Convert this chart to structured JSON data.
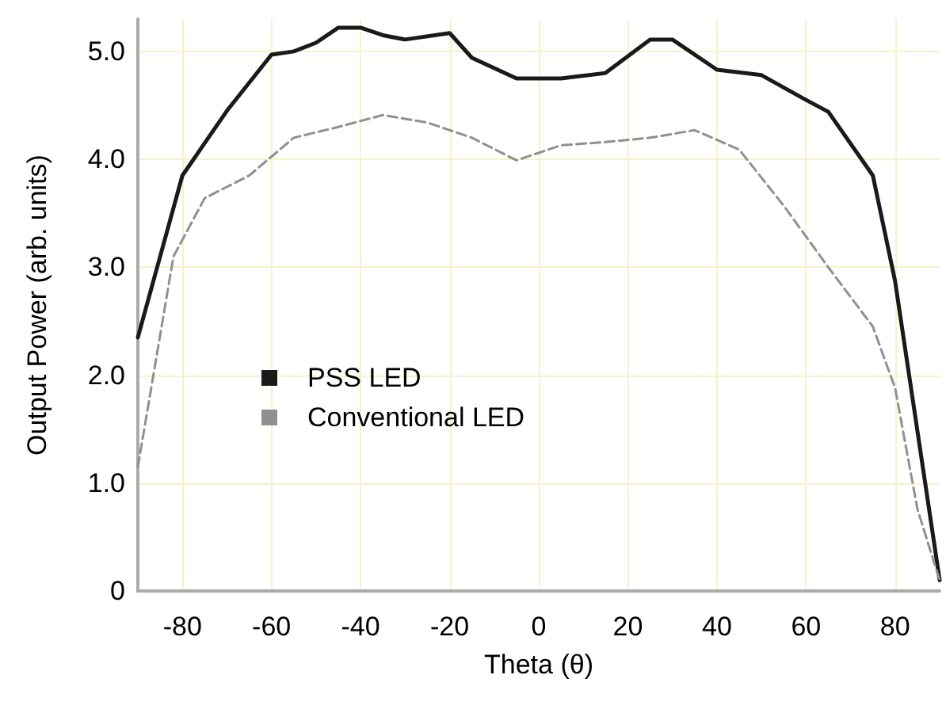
{
  "chart_data": {
    "type": "line",
    "xlabel": "Theta (θ)",
    "ylabel": "Output Power (arb. units)",
    "xlim": [
      -90,
      90
    ],
    "xticks": [
      -80,
      -60,
      -40,
      -20,
      0,
      20,
      40,
      60,
      80
    ],
    "ylim": [
      0,
      5.3
    ],
    "yticks": [
      0,
      {
        "value": 1,
        "label": "1.0"
      },
      {
        "value": 2,
        "label": "2.0"
      },
      {
        "value": 3,
        "label": "3.0"
      },
      {
        "value": 4,
        "label": "4.0"
      },
      {
        "value": 5,
        "label": "5.0"
      }
    ],
    "grid": true,
    "legend": "left",
    "marker": "none",
    "series": [
      {
        "name": "PSS LED",
        "color": "#1a1a1a",
        "line_style": "solid",
        "x": [
          -90,
          -80,
          -70,
          -60,
          -55,
          -50,
          -45,
          -40,
          -35,
          -30,
          -20,
          -15,
          -5,
          5,
          15,
          25,
          30,
          40,
          50,
          60,
          65,
          75,
          80,
          90
        ],
        "values": [
          2.35,
          3.85,
          4.45,
          4.97,
          5.0,
          5.08,
          5.22,
          5.22,
          5.15,
          5.11,
          5.17,
          4.94,
          4.75,
          4.75,
          4.8,
          5.11,
          5.11,
          4.83,
          4.78,
          4.55,
          4.44,
          3.85,
          2.87,
          0.1
        ]
      },
      {
        "name": "Conventional LED",
        "color": "#909090",
        "line_style": "dashed",
        "x": [
          -90,
          -82,
          -75,
          -65,
          -55,
          -45,
          -35,
          -25,
          -15,
          -5,
          5,
          15,
          25,
          35,
          45,
          55,
          65,
          75,
          80,
          85,
          90
        ],
        "values": [
          1.15,
          3.1,
          3.64,
          3.85,
          4.2,
          4.3,
          4.41,
          4.34,
          4.2,
          3.99,
          4.13,
          4.16,
          4.2,
          4.27,
          4.09,
          3.57,
          3.0,
          2.45,
          1.88,
          0.76,
          0.1
        ]
      }
    ]
  }
}
